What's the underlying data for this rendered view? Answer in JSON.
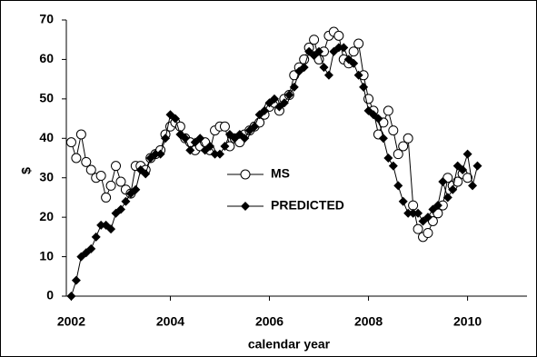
{
  "chart_data": {
    "type": "line",
    "xlabel": "calendar year",
    "ylabel": "$",
    "x": [
      2002.0,
      2002.1,
      2002.2,
      2002.3,
      2002.4,
      2002.5,
      2002.6,
      2002.7,
      2002.8,
      2002.9,
      2003.0,
      2003.1,
      2003.2,
      2003.3,
      2003.4,
      2003.5,
      2003.6,
      2003.7,
      2003.8,
      2003.9,
      2004.0,
      2004.1,
      2004.2,
      2004.3,
      2004.4,
      2004.5,
      2004.6,
      2004.7,
      2004.8,
      2004.9,
      2005.0,
      2005.1,
      2005.2,
      2005.3,
      2005.4,
      2005.5,
      2005.6,
      2005.7,
      2005.8,
      2005.9,
      2006.0,
      2006.1,
      2006.2,
      2006.3,
      2006.4,
      2006.5,
      2006.6,
      2006.7,
      2006.8,
      2006.9,
      2007.0,
      2007.1,
      2007.2,
      2007.3,
      2007.4,
      2007.5,
      2007.6,
      2007.7,
      2007.8,
      2007.9,
      2008.0,
      2008.1,
      2008.2,
      2008.3,
      2008.4,
      2008.5,
      2008.6,
      2008.7,
      2008.8,
      2008.9,
      2009.0,
      2009.1,
      2009.2,
      2009.3,
      2009.4,
      2009.5,
      2009.6,
      2009.7,
      2009.8,
      2009.9,
      2010.0,
      2010.1,
      2010.2
    ],
    "series": [
      {
        "name": "MS",
        "color": "#000000",
        "marker": "open-circle",
        "values": [
          39,
          35,
          41,
          34,
          32,
          30,
          30.5,
          25,
          28,
          33,
          29,
          27,
          26,
          33,
          33,
          32,
          35,
          36,
          37,
          41,
          43,
          44,
          43,
          40,
          39,
          37,
          38,
          39,
          37,
          42,
          43,
          43,
          38,
          40,
          39,
          41,
          42,
          43,
          44,
          46,
          48,
          49,
          47,
          50,
          51,
          56,
          58,
          60,
          63,
          65,
          60,
          62,
          66,
          67,
          66,
          60,
          59,
          62,
          64,
          56,
          50,
          47,
          41,
          44,
          47,
          42,
          36,
          38,
          40,
          23,
          17,
          15,
          16,
          19,
          21,
          23,
          30,
          28,
          29,
          31,
          30,
          null,
          null
        ]
      },
      {
        "name": "PREDICTED",
        "color": "#000000",
        "marker": "diamond",
        "values": [
          0,
          4,
          10,
          11,
          12,
          15,
          18,
          18,
          17,
          21,
          22,
          24,
          26,
          27,
          32,
          31,
          35,
          36,
          36,
          40,
          46,
          45,
          41,
          40,
          37,
          39,
          40,
          37,
          38,
          36,
          36,
          38,
          41,
          40,
          41,
          40,
          42,
          43,
          46,
          47,
          49,
          50,
          48,
          49,
          51,
          53,
          57,
          58,
          62,
          61,
          62,
          58,
          56,
          62,
          63,
          63,
          60,
          59,
          56,
          53,
          47,
          46,
          45,
          40,
          35,
          33,
          28,
          24,
          21,
          21,
          21,
          19,
          20,
          22,
          23,
          29,
          25,
          27,
          33,
          32,
          36,
          28,
          33
        ]
      }
    ],
    "xlim": [
      2001.9,
      2011.2
    ],
    "xticks": [
      2002,
      2004,
      2006,
      2008,
      2010
    ],
    "ylim": [
      0,
      70
    ],
    "yticks": [
      0,
      10,
      20,
      30,
      40,
      50,
      60,
      70
    ],
    "grid": false
  }
}
